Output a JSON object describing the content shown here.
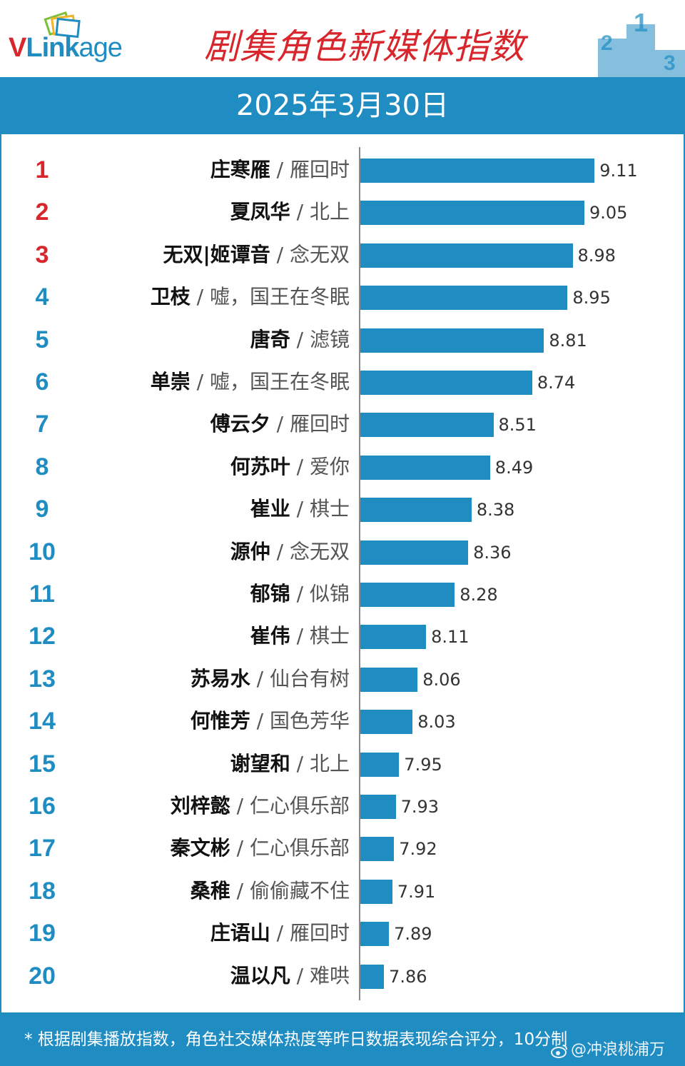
{
  "header": {
    "logo_v": "V",
    "logo_link": "Link",
    "logo_age": "age",
    "title": "剧集角色新媒体指数",
    "podium_numbers": [
      "2",
      "1",
      "3"
    ]
  },
  "date": "2025年3月30日",
  "chart_data": {
    "type": "bar",
    "title": "剧集角色新媒体指数",
    "subtitle": "2025年3月30日",
    "xlim": [
      7.72,
      9.16
    ],
    "items": [
      {
        "rank": "1",
        "name": "庄寒雁",
        "drama": "雁回时",
        "value": 9.11
      },
      {
        "rank": "2",
        "name": "夏凤华",
        "drama": "北上",
        "value": 9.05
      },
      {
        "rank": "3",
        "name": "无双|姬谭音",
        "drama": "念无双",
        "value": 8.98
      },
      {
        "rank": "4",
        "name": "卫枝",
        "drama": "嘘，国王在冬眠",
        "value": 8.95
      },
      {
        "rank": "5",
        "name": "唐奇",
        "drama": "滤镜",
        "value": 8.81
      },
      {
        "rank": "6",
        "name": "单崇",
        "drama": "嘘，国王在冬眠",
        "value": 8.74
      },
      {
        "rank": "7",
        "name": "傅云夕",
        "drama": "雁回时",
        "value": 8.51
      },
      {
        "rank": "8",
        "name": "何苏叶",
        "drama": "爱你",
        "value": 8.49
      },
      {
        "rank": "9",
        "name": "崔业",
        "drama": "棋士",
        "value": 8.38
      },
      {
        "rank": "10",
        "name": "源仲",
        "drama": "念无双",
        "value": 8.36
      },
      {
        "rank": "11",
        "name": "郁锦",
        "drama": "似锦",
        "value": 8.28
      },
      {
        "rank": "12",
        "name": "崔伟",
        "drama": "棋士",
        "value": 8.11
      },
      {
        "rank": "13",
        "name": "苏易水",
        "drama": "仙台有树",
        "value": 8.06
      },
      {
        "rank": "14",
        "name": "何惟芳",
        "drama": "国色芳华",
        "value": 8.03
      },
      {
        "rank": "15",
        "name": "谢望和",
        "drama": "北上",
        "value": 7.95
      },
      {
        "rank": "16",
        "name": "刘梓懿",
        "drama": "仁心俱乐部",
        "value": 7.93
      },
      {
        "rank": "17",
        "name": "秦文彬",
        "drama": "仁心俱乐部",
        "value": 7.92
      },
      {
        "rank": "18",
        "name": "桑稚",
        "drama": "偷偷藏不住",
        "value": 7.91
      },
      {
        "rank": "19",
        "name": "庄语山",
        "drama": "雁回时",
        "value": 7.89
      },
      {
        "rank": "20",
        "name": "温以凡",
        "drama": "难哄",
        "value": 7.86
      }
    ],
    "colors": {
      "bar": "#1f8cc2",
      "top_rank": "#d7262c",
      "other_rank": "#1f8cc2"
    }
  },
  "footer": {
    "note": "* 根据剧集播放指数，角色社交媒体热度等昨日数据表现综合评分，10分制",
    "watermark": "@冲浪桃浦万"
  }
}
